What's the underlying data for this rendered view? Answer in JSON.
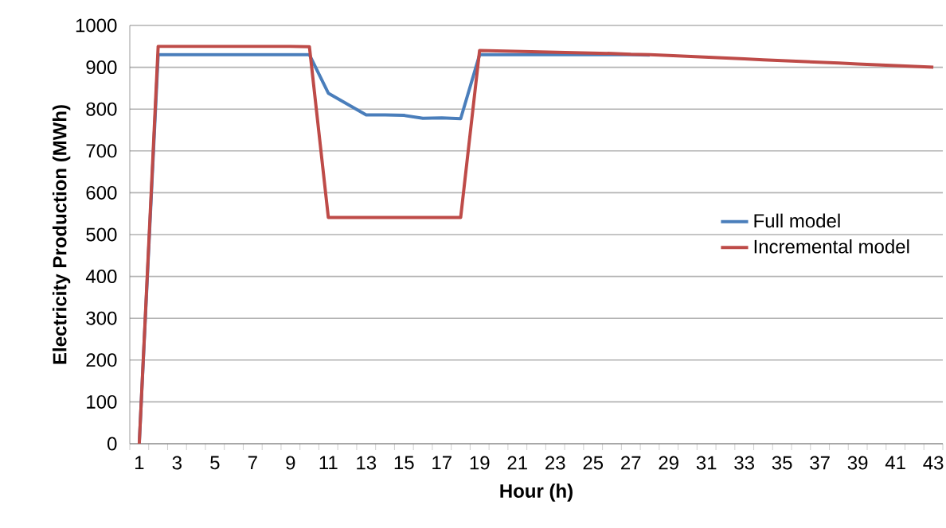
{
  "chart_data": {
    "type": "line",
    "xlabel": "Hour (h)",
    "ylabel": "Electricity Production (MWh)",
    "categories": [
      "1",
      null,
      "3",
      null,
      "5",
      null,
      "7",
      null,
      "9",
      null,
      "11",
      null,
      "13",
      null,
      "15",
      null,
      "17",
      null,
      "19",
      null,
      "21",
      null,
      "23",
      null,
      "25",
      null,
      "27",
      null,
      "29",
      null,
      "31",
      null,
      "33",
      null,
      "35",
      null,
      "37",
      null,
      "39",
      null,
      "41",
      null,
      "43"
    ],
    "series": [
      {
        "name": "Full model",
        "color": "#4a7ebb",
        "values": [
          0,
          930,
          930,
          930,
          930,
          930,
          930,
          930,
          930,
          930,
          838,
          812,
          786,
          786,
          785,
          778,
          779,
          777,
          930,
          930,
          930,
          930,
          930,
          930,
          930,
          930,
          930,
          929,
          null,
          null,
          null,
          null,
          null,
          null,
          null,
          null,
          null,
          null,
          null,
          null,
          null,
          null,
          null
        ]
      },
      {
        "name": "Incremental model",
        "color": "#be4b48",
        "values": [
          0,
          950,
          950,
          950,
          950,
          950,
          950,
          950,
          950,
          949,
          541,
          541,
          541,
          541,
          541,
          541,
          541,
          541,
          940,
          939,
          938,
          937,
          936,
          935,
          934,
          933,
          931,
          930,
          928,
          926,
          924,
          922,
          920,
          918,
          916,
          914,
          912,
          910,
          908,
          906,
          904,
          902,
          900
        ]
      }
    ],
    "ylim": [
      0,
      1000
    ],
    "yticks": [
      0,
      100,
      200,
      300,
      400,
      500,
      600,
      700,
      800,
      900,
      1000
    ],
    "grid": "y",
    "legend": "right",
    "marker": "none",
    "line_style": "solid"
  }
}
